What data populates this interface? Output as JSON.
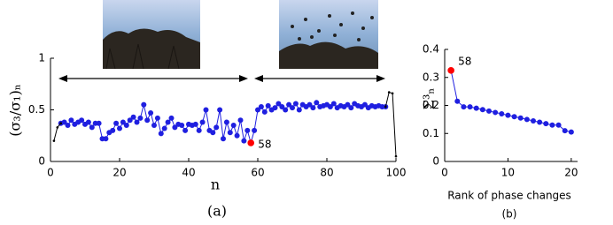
{
  "chart_data": [
    {
      "type": "line",
      "ylabel": "(σ₃/σ₁)ₙ",
      "xlabel": "n",
      "caption": "(a)",
      "x": [
        1,
        2,
        3,
        4,
        5,
        6,
        7,
        8,
        9,
        10,
        11,
        12,
        13,
        14,
        15,
        16,
        17,
        18,
        19,
        20,
        21,
        22,
        23,
        24,
        25,
        26,
        27,
        28,
        29,
        30,
        31,
        32,
        33,
        34,
        35,
        36,
        37,
        38,
        39,
        40,
        41,
        42,
        43,
        44,
        45,
        46,
        47,
        48,
        49,
        50,
        51,
        52,
        53,
        54,
        55,
        56,
        57,
        58,
        59,
        60,
        61,
        62,
        63,
        64,
        65,
        66,
        67,
        68,
        69,
        70,
        71,
        72,
        73,
        74,
        75,
        76,
        77,
        78,
        79,
        80,
        81,
        82,
        83,
        84,
        85,
        86,
        87,
        88,
        89,
        90,
        91,
        92,
        93,
        94,
        95,
        96,
        97,
        98,
        99,
        100
      ],
      "series": [
        {
          "color": "#1f1fe0",
          "markers": true,
          "values": [
            null,
            null,
            0.37,
            0.38,
            0.35,
            0.4,
            0.36,
            0.38,
            0.4,
            0.36,
            0.38,
            0.33,
            0.37,
            0.37,
            0.22,
            0.22,
            0.28,
            0.3,
            0.37,
            0.32,
            0.38,
            0.35,
            0.4,
            0.43,
            0.38,
            0.42,
            0.55,
            0.4,
            0.47,
            0.35,
            0.42,
            0.27,
            0.32,
            0.38,
            0.42,
            0.33,
            0.36,
            0.35,
            0.3,
            0.36,
            0.35,
            0.36,
            0.3,
            0.38,
            0.5,
            0.3,
            0.28,
            0.33,
            0.5,
            0.22,
            0.38,
            0.28,
            0.35,
            0.25,
            0.4,
            0.2,
            0.3,
            0.18,
            0.3,
            0.5,
            0.53,
            0.48,
            0.54,
            0.5,
            0.52,
            0.56,
            0.53,
            0.5,
            0.55,
            0.52,
            0.56,
            0.5,
            0.55,
            0.53,
            0.55,
            0.52,
            0.57,
            0.53,
            0.54,
            0.55,
            0.53,
            0.56,
            0.52,
            0.54,
            0.53,
            0.55,
            0.52,
            0.56,
            0.54,
            0.53,
            0.55,
            0.52,
            0.54,
            0.53,
            0.54,
            0.53,
            0.53,
            null,
            null,
            null
          ]
        },
        {
          "color": "#000000",
          "markers": false,
          "values": [
            0.2,
            0.33,
            0.37,
            null,
            null,
            null,
            null,
            null,
            null,
            null,
            null,
            null,
            null,
            null,
            null,
            null,
            null,
            null,
            null,
            null,
            null,
            null,
            null,
            null,
            null,
            null,
            null,
            null,
            null,
            null,
            null,
            null,
            null,
            null,
            null,
            null,
            null,
            null,
            null,
            null,
            null,
            null,
            null,
            null,
            null,
            null,
            null,
            null,
            null,
            null,
            null,
            null,
            null,
            null,
            null,
            null,
            null,
            null,
            null,
            null,
            null,
            null,
            null,
            null,
            null,
            null,
            null,
            null,
            null,
            null,
            null,
            null,
            null,
            null,
            null,
            null,
            null,
            null,
            null,
            null,
            null,
            null,
            null,
            null,
            null,
            null,
            null,
            null,
            null,
            null,
            null,
            null,
            null,
            null,
            null,
            null,
            0.53,
            0.67,
            0.66,
            0.05
          ]
        }
      ],
      "highlight": {
        "x": 58,
        "color": "#ff0000"
      },
      "xlim": [
        0,
        100
      ],
      "ylim": [
        0,
        1
      ],
      "xticks": [
        0,
        20,
        40,
        60,
        80,
        100
      ],
      "yticks": [
        0,
        0.5,
        1
      ]
    },
    {
      "type": "line",
      "ylabel": "Σ³ₙ",
      "xlabel": "Rank of phase changes",
      "caption": "(b)",
      "x": [
        1,
        2,
        3,
        4,
        5,
        6,
        7,
        8,
        9,
        10,
        11,
        12,
        13,
        14,
        15,
        16,
        17,
        18,
        19,
        20
      ],
      "series": [
        {
          "color": "#1f1fe0",
          "markers": true,
          "values": [
            0.325,
            0.215,
            0.195,
            0.195,
            0.19,
            0.185,
            0.18,
            0.175,
            0.17,
            0.165,
            0.16,
            0.155,
            0.15,
            0.145,
            0.14,
            0.135,
            0.13,
            0.13,
            0.11,
            0.105
          ]
        }
      ],
      "highlight": {
        "x": 1,
        "label": "58",
        "color": "#ff0000"
      },
      "xlim": [
        0,
        21
      ],
      "ylim": [
        0,
        0.4
      ],
      "xticks": [
        0,
        10,
        20
      ],
      "yticks": [
        0,
        0.1,
        0.2,
        0.3,
        0.4
      ]
    }
  ]
}
